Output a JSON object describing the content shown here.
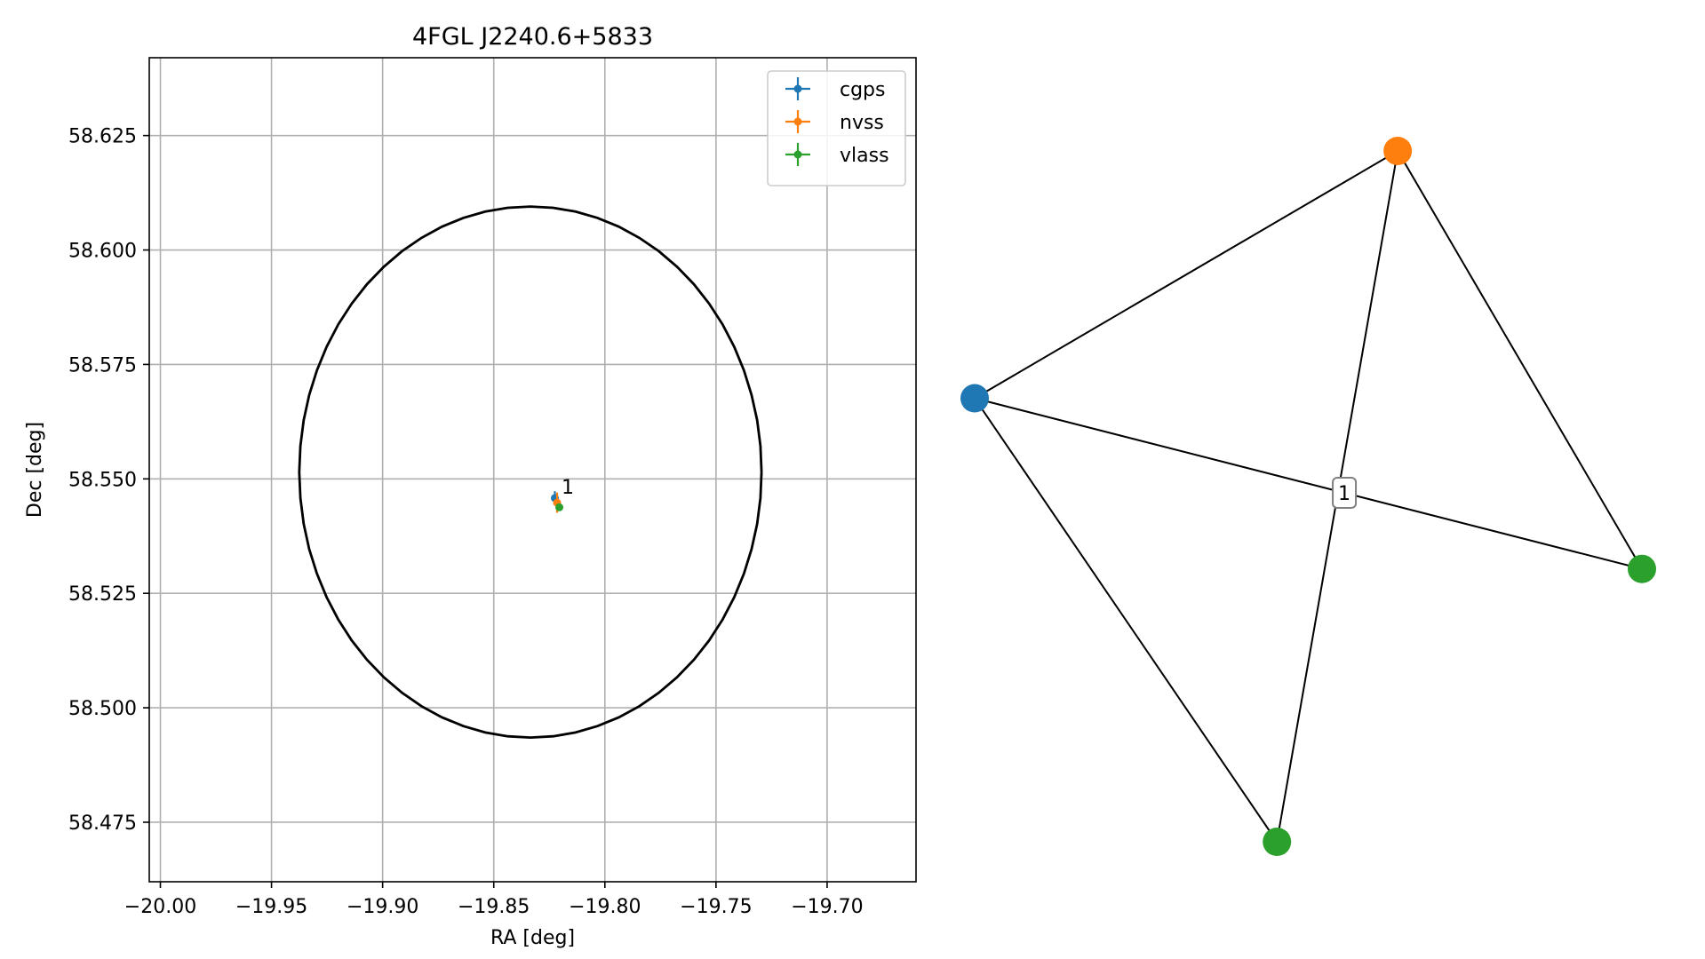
{
  "chart_data": [
    {
      "type": "scatter",
      "title": "4FGL J2240.6+5833",
      "xlabel": "RA [deg]",
      "ylabel": "Dec [deg]",
      "xlim": [
        -20.005,
        -19.66
      ],
      "ylim": [
        58.462,
        58.642
      ],
      "xticks": [
        -20.0,
        -19.95,
        -19.9,
        -19.85,
        -19.8,
        -19.75,
        -19.7
      ],
      "xtick_labels": [
        "−20.00",
        "−19.95",
        "−19.90",
        "−19.85",
        "−19.80",
        "−19.75",
        "−19.70"
      ],
      "yticks": [
        58.475,
        58.5,
        58.525,
        58.55,
        58.575,
        58.6,
        58.625
      ],
      "ytick_labels": [
        "58.475",
        "58.500",
        "58.525",
        "58.550",
        "58.575",
        "58.600",
        "58.625"
      ],
      "grid": true,
      "legend_position": "top-right",
      "series": [
        {
          "name": "cgps",
          "color": "#1f77b4",
          "points": [
            {
              "x": -19.8225,
              "y": 58.5458,
              "xerr": 0.0008,
              "yerr": 0.0015
            }
          ]
        },
        {
          "name": "nvss",
          "color": "#ff7f0e",
          "points": [
            {
              "x": -19.8215,
              "y": 58.5448,
              "xerr": 0.001,
              "yerr": 0.0022
            }
          ]
        },
        {
          "name": "vlass",
          "color": "#2ca02c",
          "points": [
            {
              "x": -19.8205,
              "y": 58.5438,
              "xerr": 0.0015,
              "yerr": 0.0005
            }
          ]
        }
      ],
      "ellipse": {
        "center_x": -19.8335,
        "center_y": 58.5515,
        "semi_x": 0.104,
        "semi_y": 0.058,
        "color": "#000000"
      },
      "annotations": [
        {
          "text": "1",
          "x": -19.8195,
          "y": 58.5468
        }
      ]
    },
    {
      "type": "network",
      "nodes": [
        {
          "id": "cgps",
          "color": "#1f77b4",
          "x": 0.0,
          "y": 0.642
        },
        {
          "id": "nvss",
          "color": "#ff7f0e",
          "x": 0.634,
          "y": 1.0
        },
        {
          "id": "vlass_a",
          "color": "#2ca02c",
          "x": 1.0,
          "y": 0.395
        },
        {
          "id": "vlass_b",
          "color": "#2ca02c",
          "x": 0.453,
          "y": 0.0
        }
      ],
      "edges": [
        {
          "source": "cgps",
          "target": "nvss"
        },
        {
          "source": "cgps",
          "target": "vlass_a"
        },
        {
          "source": "cgps",
          "target": "vlass_b"
        },
        {
          "source": "nvss",
          "target": "vlass_a"
        },
        {
          "source": "nvss",
          "target": "vlass_b"
        }
      ],
      "edge_labels": [
        {
          "text": "1",
          "source": "cgps",
          "target": "vlass_a",
          "t": 0.554
        }
      ]
    }
  ]
}
